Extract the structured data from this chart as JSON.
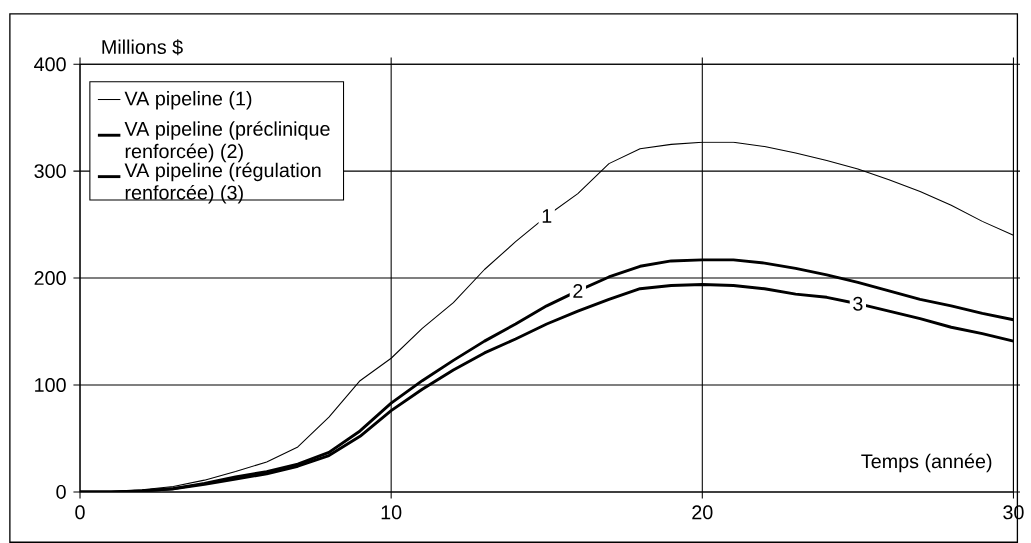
{
  "chart_data": {
    "type": "line",
    "ylabel": "Millions $",
    "xlabel": "Temps (année)",
    "xlim": [
      0,
      30
    ],
    "ylim": [
      0,
      400
    ],
    "xticks": [
      0,
      10,
      20,
      30
    ],
    "yticks": [
      0,
      100,
      200,
      300,
      400
    ],
    "grid": true,
    "legend": "top left",
    "marker": "none",
    "line_style": "solid",
    "annotations": [
      {
        "text": "1",
        "x": 15,
        "y": 258
      },
      {
        "text": "2",
        "x": 16,
        "y": 188
      },
      {
        "text": "3",
        "x": 25,
        "y": 176
      }
    ],
    "series": [
      {
        "name": "VA pipeline (1)",
        "color": "#000000",
        "x": [
          0,
          1,
          2,
          3,
          4,
          5,
          6,
          7,
          8,
          9,
          10,
          11,
          12,
          13,
          14,
          15,
          16,
          17,
          18,
          19,
          20,
          21,
          22,
          23,
          24,
          25,
          26,
          27,
          28,
          29,
          30
        ],
        "values": [
          0,
          0,
          2,
          5,
          11,
          19,
          28,
          42,
          70,
          104,
          125,
          153,
          177,
          208,
          234,
          258,
          279,
          307,
          321,
          325,
          327,
          327,
          323,
          317,
          310,
          302,
          292,
          281,
          268,
          253,
          240
        ]
      },
      {
        "name": "VA pipeline (préclinique renforcée) (2)",
        "color": "#000000",
        "x": [
          0,
          1,
          2,
          3,
          4,
          5,
          6,
          7,
          8,
          9,
          10,
          11,
          12,
          13,
          14,
          15,
          16,
          17,
          18,
          19,
          20,
          21,
          22,
          23,
          24,
          25,
          26,
          27,
          28,
          29,
          30
        ],
        "values": [
          0,
          0,
          1,
          3,
          8,
          14,
          19,
          26,
          37,
          57,
          83,
          104,
          123,
          141,
          157,
          174,
          188,
          201,
          211,
          216,
          217,
          217,
          214,
          209,
          203,
          196,
          188,
          180,
          174,
          167,
          161
        ]
      },
      {
        "name": "VA pipeline (régulation renforcée) (3)",
        "color": "#000000",
        "x": [
          0,
          1,
          2,
          3,
          4,
          5,
          6,
          7,
          8,
          9,
          10,
          11,
          12,
          13,
          14,
          15,
          16,
          17,
          18,
          19,
          20,
          21,
          22,
          23,
          24,
          25,
          26,
          27,
          28,
          29,
          30
        ],
        "values": [
          0,
          0,
          1,
          3,
          7,
          12,
          17,
          24,
          34,
          52,
          76,
          96,
          114,
          130,
          143,
          157,
          169,
          180,
          190,
          193,
          194,
          193,
          190,
          185,
          182,
          176,
          169,
          162,
          154,
          148,
          141
        ]
      }
    ]
  }
}
